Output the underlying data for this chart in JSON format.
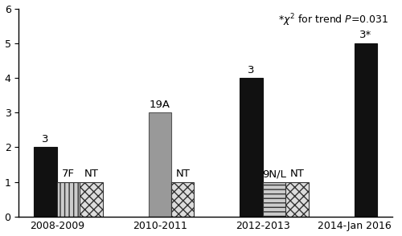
{
  "groups": [
    "2008-2009",
    "2010-2011",
    "2012-2013",
    "2014-Jan 2016"
  ],
  "bars": [
    {
      "group": "2008-2009",
      "entries": [
        {
          "label": "3",
          "value": 2,
          "color": "#111111",
          "hatch": null,
          "edgecolor": "#111111"
        },
        {
          "label": "7F",
          "value": 1,
          "color": "#cccccc",
          "hatch": "|||",
          "edgecolor": "#333333"
        },
        {
          "label": "NT",
          "value": 1,
          "color": "#dddddd",
          "hatch": "xxx",
          "edgecolor": "#333333"
        }
      ]
    },
    {
      "group": "2010-2011",
      "entries": [
        {
          "label": "19A",
          "value": 3,
          "color": "#999999",
          "hatch": null,
          "edgecolor": "#555555"
        },
        {
          "label": "NT",
          "value": 1,
          "color": "#dddddd",
          "hatch": "xxx",
          "edgecolor": "#333333"
        }
      ]
    },
    {
      "group": "2012-2013",
      "entries": [
        {
          "label": "3",
          "value": 4,
          "color": "#111111",
          "hatch": null,
          "edgecolor": "#111111"
        },
        {
          "label": "9N/L",
          "value": 1,
          "color": "#cccccc",
          "hatch": "---",
          "edgecolor": "#333333"
        },
        {
          "label": "NT",
          "value": 1,
          "color": "#dddddd",
          "hatch": "xxx",
          "edgecolor": "#333333"
        }
      ]
    },
    {
      "group": "2014-Jan 2016",
      "entries": [
        {
          "label": "3*",
          "value": 5,
          "color": "#111111",
          "hatch": null,
          "edgecolor": "#111111"
        }
      ]
    }
  ],
  "ylim": [
    0,
    6
  ],
  "yticks": [
    0,
    1,
    2,
    3,
    4,
    5,
    6
  ],
  "figure_width": 5.0,
  "figure_height": 2.94,
  "dpi": 100
}
